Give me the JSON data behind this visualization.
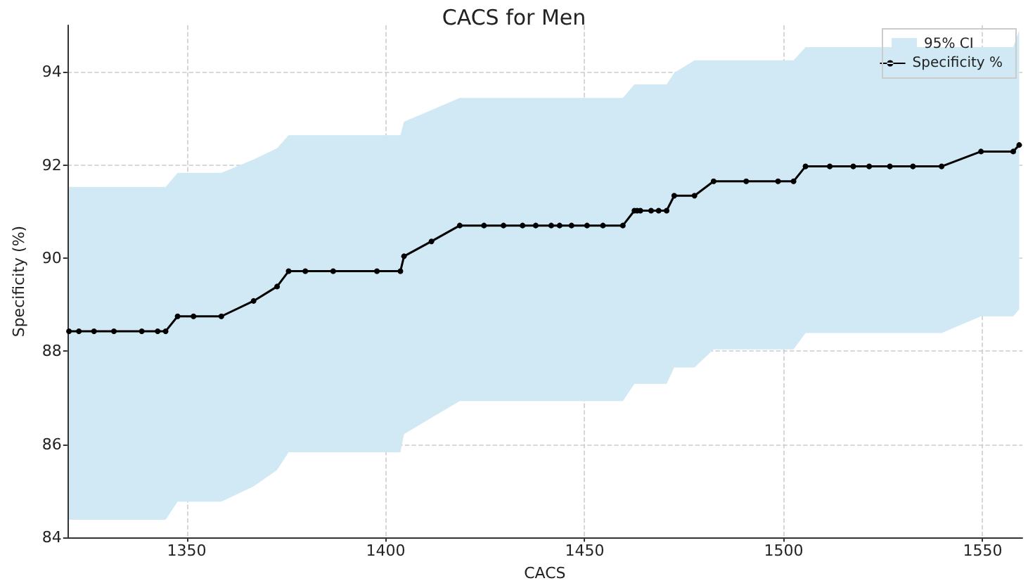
{
  "chart_data": {
    "type": "line",
    "title": "CACS for Men",
    "xlabel": "CACS",
    "ylabel": "Specificity (%)",
    "x": [
      1320.4,
      1322.9,
      1326.7,
      1331.7,
      1338.7,
      1342.7,
      1344.7,
      1347.7,
      1351.7,
      1358.7,
      1366.8,
      1372.7,
      1375.6,
      1379.8,
      1386.8,
      1397.8,
      1403.7,
      1404.6,
      1411.5,
      1418.6,
      1424.7,
      1429.6,
      1434.4,
      1437.7,
      1441.6,
      1443.7,
      1446.7,
      1450.6,
      1454.6,
      1459.6,
      1462.5,
      1463.2,
      1464.0,
      1466.7,
      1468.6,
      1470.6,
      1472.5,
      1477.6,
      1482.4,
      1490.6,
      1498.6,
      1502.5,
      1505.5,
      1511.6,
      1517.5,
      1521.5,
      1526.7,
      1532.5,
      1539.7,
      1549.6,
      1557.7,
      1559.2
    ],
    "series": [
      {
        "name": "Specificity %",
        "color": "#000000",
        "lower": [
          84.38,
          84.38,
          84.38,
          84.38,
          84.38,
          84.38,
          84.38,
          84.77,
          84.77,
          84.77,
          85.1,
          85.45,
          85.83,
          85.83,
          85.83,
          85.83,
          85.83,
          86.22,
          86.57,
          86.93,
          86.93,
          86.93,
          86.93,
          86.93,
          86.93,
          86.93,
          86.93,
          86.93,
          86.93,
          86.93,
          87.3,
          87.3,
          87.3,
          87.3,
          87.3,
          87.3,
          87.65,
          87.65,
          88.04,
          88.04,
          88.04,
          88.04,
          88.39,
          88.39,
          88.39,
          88.39,
          88.39,
          88.39,
          88.39,
          88.75,
          88.75,
          88.9
        ],
        "upper": [
          91.53,
          91.53,
          91.53,
          91.53,
          91.53,
          91.53,
          91.53,
          91.83,
          91.83,
          91.83,
          92.12,
          92.36,
          92.64,
          92.64,
          92.64,
          92.64,
          92.64,
          92.93,
          93.18,
          93.44,
          93.44,
          93.44,
          93.44,
          93.44,
          93.44,
          93.44,
          93.44,
          93.44,
          93.44,
          93.44,
          93.73,
          93.73,
          93.73,
          93.73,
          93.73,
          93.73,
          93.98,
          94.25,
          94.25,
          94.25,
          94.25,
          94.25,
          94.53,
          94.53,
          94.53,
          94.53,
          94.53,
          94.53,
          94.53,
          94.53,
          94.53,
          94.89
        ],
        "values": [
          88.43,
          88.43,
          88.43,
          88.43,
          88.43,
          88.43,
          88.43,
          88.75,
          88.75,
          88.75,
          89.08,
          89.39,
          89.72,
          89.72,
          89.72,
          89.72,
          89.72,
          90.04,
          90.36,
          90.7,
          90.7,
          90.7,
          90.7,
          90.7,
          90.7,
          90.7,
          90.7,
          90.7,
          90.7,
          90.7,
          91.02,
          91.02,
          91.02,
          91.02,
          91.02,
          91.02,
          91.34,
          91.34,
          91.65,
          91.65,
          91.65,
          91.65,
          91.97,
          91.97,
          91.97,
          91.97,
          91.97,
          91.97,
          91.97,
          92.29,
          92.29,
          92.43
        ]
      }
    ],
    "annotations": [
      "95% CI"
    ],
    "xlim": [
      1320,
      1560
    ],
    "xticks": [
      1350,
      1400,
      1450,
      1500,
      1550
    ],
    "ylim": [
      84,
      95
    ],
    "yticks": [
      84,
      86,
      88,
      90,
      92,
      94
    ],
    "grid": true,
    "legend": "top right",
    "marker": "circle",
    "line_style": "solid"
  }
}
